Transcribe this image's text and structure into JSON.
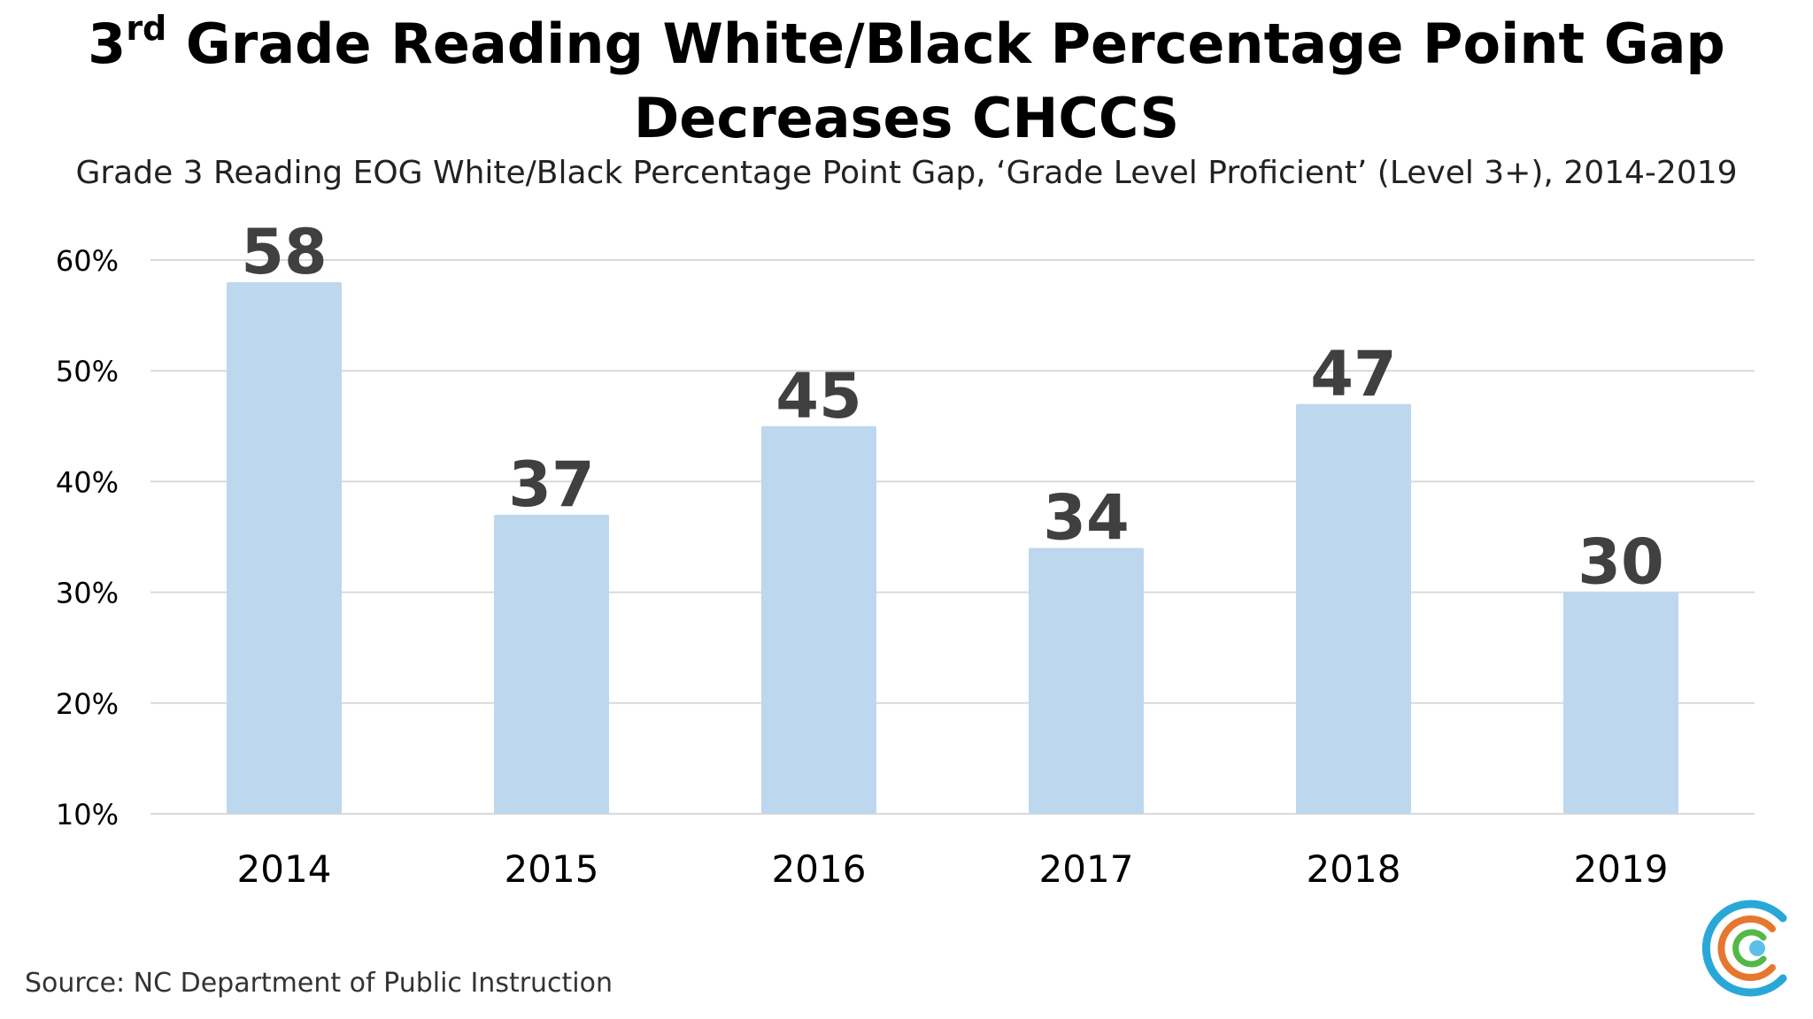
{
  "title": {
    "prefix": "3",
    "superscript": "rd",
    "rest": " Grade Reading White/Black Percentage Point Gap Decreases CHCCS"
  },
  "subtitle": "Grade 3 Reading EOG White/Black Percentage Point Gap, ‘Grade Level Proficient’ (Level 3+), 2014-2019",
  "source": "Source: NC Department of Public Instruction",
  "logo": {
    "icon": "concentric-c-logo-icon",
    "colors": [
      "#29a8d8",
      "#e6772e",
      "#54b848",
      "#5bc0e6"
    ]
  },
  "colors": {
    "bar": "#bdd7ee",
    "grid": "#d9d9d9",
    "data_label": "#404040",
    "tick_label": "#000000"
  },
  "chart_data": {
    "type": "bar",
    "title": "3rd Grade Reading White/Black Percentage Point Gap Decreases CHCCS",
    "subtitle": "Grade 3 Reading EOG White/Black Percentage Point Gap, ‘Grade Level Proficient’ (Level 3+), 2014-2019",
    "categories": [
      "2014",
      "2015",
      "2016",
      "2017",
      "2018",
      "2019"
    ],
    "values": [
      58,
      37,
      45,
      34,
      47,
      30
    ],
    "data_labels": [
      "58",
      "37",
      "45",
      "34",
      "47",
      "30"
    ],
    "ylim": [
      10,
      60
    ],
    "yticks": [
      10,
      20,
      30,
      40,
      50,
      60
    ],
    "ytick_labels": [
      "10%",
      "20%",
      "30%",
      "40%",
      "50%",
      "60%"
    ],
    "xlabel": "",
    "ylabel": "",
    "grid": true,
    "legend": "none"
  }
}
